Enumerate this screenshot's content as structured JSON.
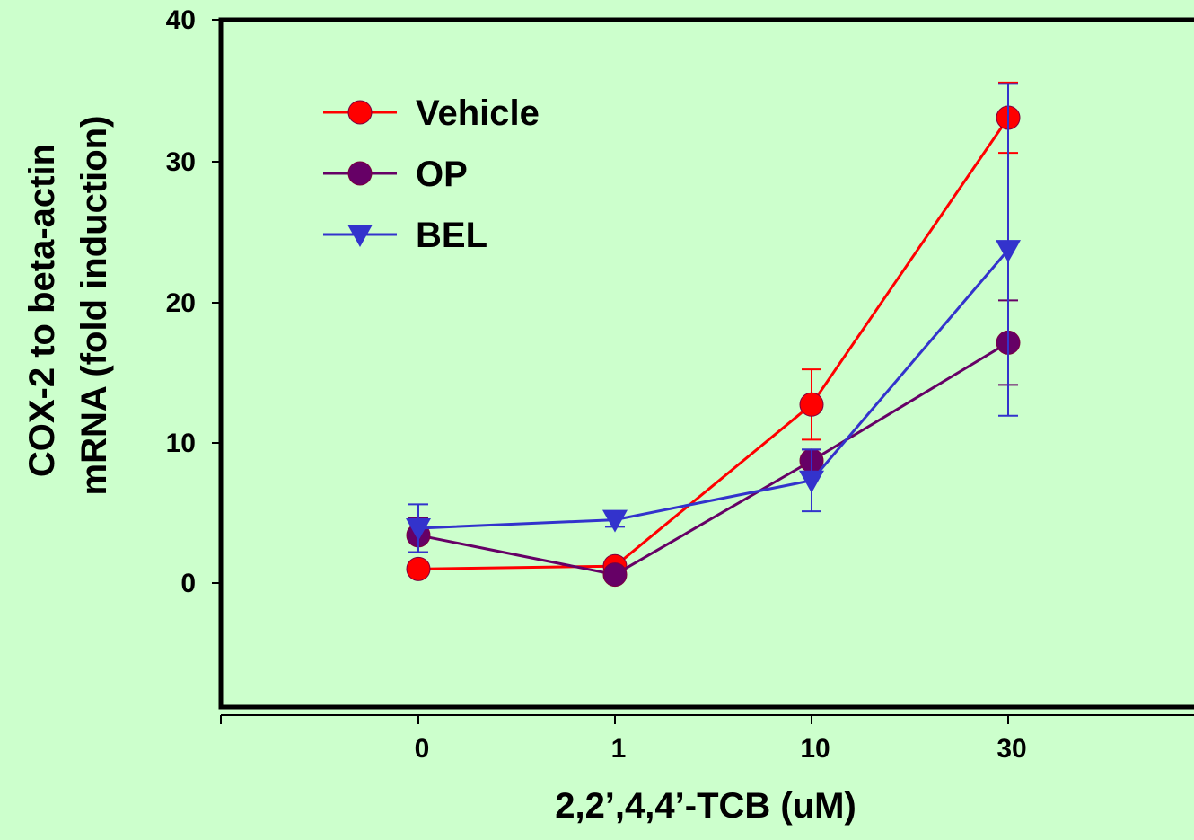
{
  "chart_data": {
    "type": "line",
    "xlabel": "2,2’,4,4’-TCB (uM)",
    "ylabel_lines": [
      "COX-2 to beta-actin",
      "mRNA (fold induction)"
    ],
    "categories": [
      "0",
      "1",
      "10",
      "30"
    ],
    "yticks": [
      "0",
      "10",
      "20",
      "30",
      "40"
    ],
    "ylim": [
      -9,
      40
    ],
    "grid": false,
    "legend_position": "top-left",
    "series": [
      {
        "name": "Vehicle",
        "color": "#ff0000",
        "marker": "circle",
        "values": [
          1.0,
          1.2,
          12.7,
          33.1
        ],
        "errors": [
          0.2,
          0.4,
          2.5,
          2.5
        ]
      },
      {
        "name": "OP",
        "color": "#660066",
        "marker": "circle",
        "values": [
          3.4,
          0.6,
          8.7,
          17.1
        ],
        "errors": [
          1.2,
          0.3,
          0.8,
          3.0
        ]
      },
      {
        "name": "BEL",
        "color": "#3333cc",
        "marker": "triangle-down",
        "values": [
          3.9,
          4.5,
          7.3,
          23.7
        ],
        "errors": [
          1.7,
          0.5,
          2.2,
          11.8
        ]
      }
    ]
  }
}
